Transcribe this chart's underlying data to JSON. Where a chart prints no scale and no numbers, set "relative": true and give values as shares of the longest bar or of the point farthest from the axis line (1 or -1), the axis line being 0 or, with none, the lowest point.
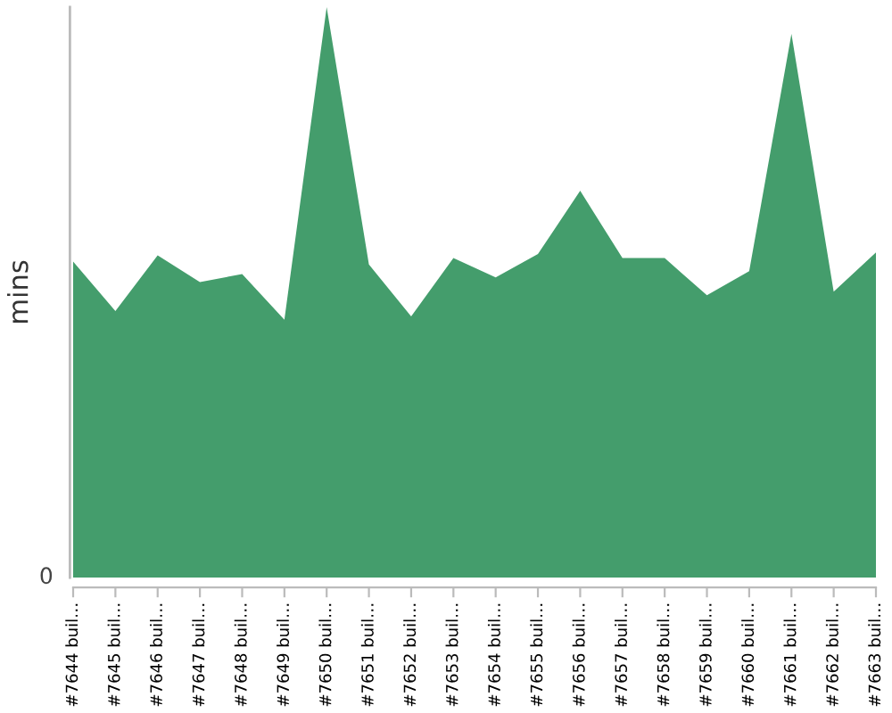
{
  "chart_data": {
    "type": "area",
    "ylabel": "mins",
    "relative": true,
    "annotations": [
      "0"
    ],
    "categories": [
      "#7644 buil…",
      "#7645 buil…",
      "#7646 buil…",
      "#7647 buil…",
      "#7648 buil…",
      "#7649 buil…",
      "#7650 buil…",
      "#7651 buil…",
      "#7652 buil…",
      "#7653 buil…",
      "#7654 buil…",
      "#7655 buil…",
      "#7656 buil…",
      "#7657 buil…",
      "#7658 buil…",
      "#7659 buil…",
      "#7660 buil…",
      "#7661 buil…",
      "#7662 buil…",
      "#7663 buil…"
    ],
    "series": [
      {
        "color": "#449d6c",
        "values": [
          0.554,
          0.467,
          0.565,
          0.518,
          0.532,
          0.452,
          1,
          0.549,
          0.458,
          0.56,
          0.526,
          0.567,
          0.678,
          0.56,
          0.56,
          0.495,
          0.537,
          0.953,
          0.501,
          0.57
        ]
      }
    ]
  }
}
